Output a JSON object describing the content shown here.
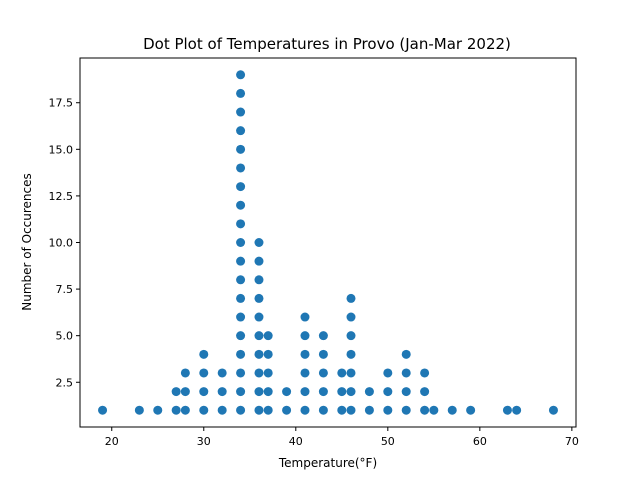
{
  "chart_data": {
    "type": "scatter",
    "title": "Dot Plot of Temperatures in Provo (Jan-Mar 2022)",
    "xlabel": "Temperature(°F)",
    "ylabel": "Number of Occurences",
    "xlim": [
      16.55,
      70.45
    ],
    "ylim": [
      0.1,
      19.9
    ],
    "xticks": [
      20,
      30,
      40,
      50,
      60,
      70
    ],
    "yticks": [
      2.5,
      5.0,
      7.5,
      10.0,
      12.5,
      15.0,
      17.5
    ],
    "ytick_labels": [
      "2.5",
      "5.0",
      "7.5",
      "10.0",
      "12.5",
      "15.0",
      "17.5"
    ],
    "grid": false,
    "marker_color": "#1f77b4",
    "counts": [
      {
        "temp": 19,
        "count": 1
      },
      {
        "temp": 23,
        "count": 1
      },
      {
        "temp": 25,
        "count": 1
      },
      {
        "temp": 27,
        "count": 2
      },
      {
        "temp": 28,
        "count": 3
      },
      {
        "temp": 30,
        "count": 4
      },
      {
        "temp": 32,
        "count": 3
      },
      {
        "temp": 34,
        "count": 19
      },
      {
        "temp": 36,
        "count": 10
      },
      {
        "temp": 37,
        "count": 5
      },
      {
        "temp": 39,
        "count": 2
      },
      {
        "temp": 41,
        "count": 6
      },
      {
        "temp": 43,
        "count": 5
      },
      {
        "temp": 45,
        "count": 3
      },
      {
        "temp": 46,
        "count": 7
      },
      {
        "temp": 48,
        "count": 2
      },
      {
        "temp": 50,
        "count": 3
      },
      {
        "temp": 52,
        "count": 4
      },
      {
        "temp": 54,
        "count": 3
      },
      {
        "temp": 55,
        "count": 1
      },
      {
        "temp": 57,
        "count": 1
      },
      {
        "temp": 59,
        "count": 1
      },
      {
        "temp": 63,
        "count": 1
      },
      {
        "temp": 64,
        "count": 1
      },
      {
        "temp": 68,
        "count": 1
      }
    ]
  }
}
